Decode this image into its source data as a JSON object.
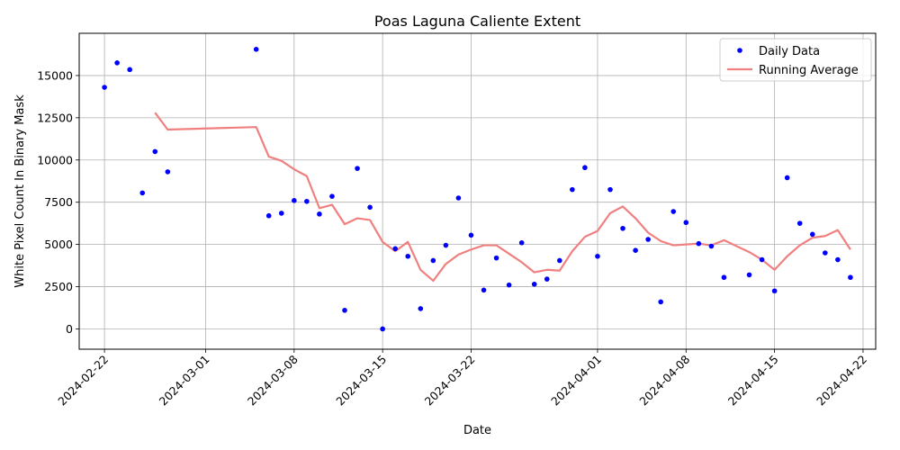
{
  "chart_data": {
    "type": "scatter",
    "title": "Poas Laguna Caliente Extent",
    "xlabel": "Date",
    "ylabel": "White Pixel Count In Binary Mask",
    "xlim": [
      "2024-02-20",
      "2024-04-23"
    ],
    "ylim": [
      -1200,
      17500
    ],
    "x_ticks": [
      "2024-02-22",
      "2024-03-01",
      "2024-03-08",
      "2024-03-15",
      "2024-03-22",
      "2024-04-01",
      "2024-04-08",
      "2024-04-15",
      "2024-04-22"
    ],
    "y_ticks": [
      0,
      2500,
      5000,
      7500,
      10000,
      12500,
      15000
    ],
    "y_tick_labels": [
      "0",
      "2500",
      "5000",
      "7500",
      "10000",
      "12500",
      "15000"
    ],
    "grid": true,
    "legend_position": "top-right",
    "series": [
      {
        "name": "Daily Data",
        "kind": "scatter",
        "color": "#0000ff",
        "points": [
          [
            "2024-02-22",
            14300
          ],
          [
            "2024-02-23",
            15750
          ],
          [
            "2024-02-24",
            15350
          ],
          [
            "2024-02-25",
            8050
          ],
          [
            "2024-02-26",
            10500
          ],
          [
            "2024-02-27",
            9300
          ],
          [
            "2024-03-05",
            16550
          ],
          [
            "2024-03-06",
            6700
          ],
          [
            "2024-03-07",
            6850
          ],
          [
            "2024-03-08",
            7600
          ],
          [
            "2024-03-09",
            7550
          ],
          [
            "2024-03-10",
            6800
          ],
          [
            "2024-03-11",
            7850
          ],
          [
            "2024-03-12",
            1100
          ],
          [
            "2024-03-13",
            9500
          ],
          [
            "2024-03-14",
            7200
          ],
          [
            "2024-03-15",
            0
          ],
          [
            "2024-03-16",
            4750
          ],
          [
            "2024-03-17",
            4300
          ],
          [
            "2024-03-18",
            1200
          ],
          [
            "2024-03-19",
            4050
          ],
          [
            "2024-03-20",
            4950
          ],
          [
            "2024-03-21",
            7750
          ],
          [
            "2024-03-22",
            5550
          ],
          [
            "2024-03-23",
            2300
          ],
          [
            "2024-03-24",
            4200
          ],
          [
            "2024-03-25",
            2600
          ],
          [
            "2024-03-26",
            5100
          ],
          [
            "2024-03-27",
            2650
          ],
          [
            "2024-03-28",
            2950
          ],
          [
            "2024-03-29",
            4050
          ],
          [
            "2024-03-30",
            8250
          ],
          [
            "2024-03-31",
            9550
          ],
          [
            "2024-04-01",
            4300
          ],
          [
            "2024-04-02",
            8250
          ],
          [
            "2024-04-03",
            5950
          ],
          [
            "2024-04-04",
            4650
          ],
          [
            "2024-04-05",
            5300
          ],
          [
            "2024-04-06",
            1600
          ],
          [
            "2024-04-07",
            6950
          ],
          [
            "2024-04-08",
            6300
          ],
          [
            "2024-04-09",
            5050
          ],
          [
            "2024-04-10",
            4900
          ],
          [
            "2024-04-11",
            3050
          ],
          [
            "2024-04-13",
            3200
          ],
          [
            "2024-04-14",
            4100
          ],
          [
            "2024-04-15",
            2250
          ],
          [
            "2024-04-16",
            8950
          ],
          [
            "2024-04-17",
            6250
          ],
          [
            "2024-04-18",
            5600
          ],
          [
            "2024-04-19",
            4500
          ],
          [
            "2024-04-20",
            4100
          ],
          [
            "2024-04-21",
            3050
          ]
        ]
      },
      {
        "name": "Running Average",
        "kind": "line",
        "color": "#f08080",
        "points": [
          [
            "2024-02-26",
            12800
          ],
          [
            "2024-02-27",
            11800
          ],
          [
            "2024-03-05",
            11950
          ],
          [
            "2024-03-06",
            10200
          ],
          [
            "2024-03-07",
            9950
          ],
          [
            "2024-03-08",
            9450
          ],
          [
            "2024-03-09",
            9050
          ],
          [
            "2024-03-10",
            7150
          ],
          [
            "2024-03-11",
            7350
          ],
          [
            "2024-03-12",
            6200
          ],
          [
            "2024-03-13",
            6550
          ],
          [
            "2024-03-14",
            6450
          ],
          [
            "2024-03-15",
            5150
          ],
          [
            "2024-03-16",
            4600
          ],
          [
            "2024-03-17",
            5150
          ],
          [
            "2024-03-18",
            3500
          ],
          [
            "2024-03-19",
            2850
          ],
          [
            "2024-03-20",
            3850
          ],
          [
            "2024-03-21",
            4400
          ],
          [
            "2024-03-22",
            4700
          ],
          [
            "2024-03-23",
            4950
          ],
          [
            "2024-03-24",
            4950
          ],
          [
            "2024-03-25",
            4450
          ],
          [
            "2024-03-26",
            3950
          ],
          [
            "2024-03-27",
            3350
          ],
          [
            "2024-03-28",
            3500
          ],
          [
            "2024-03-29",
            3450
          ],
          [
            "2024-03-30",
            4600
          ],
          [
            "2024-03-31",
            5450
          ],
          [
            "2024-04-01",
            5800
          ],
          [
            "2024-04-02",
            6850
          ],
          [
            "2024-04-03",
            7250
          ],
          [
            "2024-04-04",
            6550
          ],
          [
            "2024-04-05",
            5700
          ],
          [
            "2024-04-06",
            5200
          ],
          [
            "2024-04-07",
            4950
          ],
          [
            "2024-04-08",
            5000
          ],
          [
            "2024-04-09",
            5050
          ],
          [
            "2024-04-10",
            4950
          ],
          [
            "2024-04-11",
            5250
          ],
          [
            "2024-04-13",
            4550
          ],
          [
            "2024-04-14",
            4100
          ],
          [
            "2024-04-15",
            3500
          ],
          [
            "2024-04-16",
            4300
          ],
          [
            "2024-04-17",
            4950
          ],
          [
            "2024-04-18",
            5400
          ],
          [
            "2024-04-19",
            5500
          ],
          [
            "2024-04-20",
            5850
          ],
          [
            "2024-04-21",
            4700
          ]
        ]
      }
    ]
  }
}
